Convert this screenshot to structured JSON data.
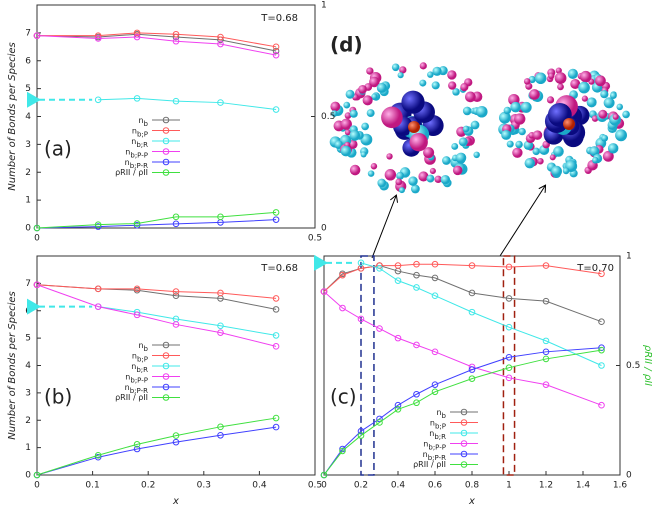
{
  "chart_data": [
    {
      "type": "line",
      "title": "(a)",
      "annotation": "T=0.68",
      "ylabel": "Number of Bonds per Species",
      "x": [
        0,
        0.11,
        0.18,
        0.25,
        0.33,
        0.43
      ],
      "xlim": [
        0,
        0.5
      ],
      "xticks": [
        0,
        0.5
      ],
      "ylim": [
        0,
        8
      ],
      "yticks": [
        0,
        1,
        2,
        3,
        4,
        5,
        6,
        7
      ],
      "y2lim": [
        0,
        1
      ],
      "y2ticks": [
        0,
        0.5,
        1
      ],
      "series": [
        {
          "name": "nb",
          "color": "#707070",
          "values": [
            6.9,
            6.85,
            6.95,
            6.85,
            6.75,
            6.35
          ]
        },
        {
          "name": "nb;P",
          "color": "#ff5a5a",
          "values": [
            6.9,
            6.9,
            7.0,
            6.95,
            6.85,
            6.5
          ]
        },
        {
          "name": "nb;R",
          "color": "#40e8e8",
          "values": [
            null,
            4.6,
            4.65,
            4.55,
            4.5,
            4.25
          ]
        },
        {
          "name": "nb;P-P",
          "color": "#f040f0",
          "values": [
            6.9,
            6.8,
            6.85,
            6.7,
            6.6,
            6.2
          ]
        },
        {
          "name": "nb;P-R",
          "color": "#4040ff",
          "values": [
            0,
            0.05,
            0.1,
            0.15,
            0.2,
            0.3
          ]
        },
        {
          "name": "ρRII / ρII",
          "color": "#40e040",
          "axis": "y2",
          "values": [
            0,
            0.015,
            0.02,
            0.05,
            0.05,
            0.07
          ]
        }
      ]
    },
    {
      "type": "line",
      "title": "(b)",
      "annotation": "T=0.68",
      "ylabel": "Number of Bonds per Species",
      "xlabel": "x",
      "x": [
        0,
        0.11,
        0.18,
        0.25,
        0.33,
        0.43
      ],
      "xlim": [
        0,
        0.5
      ],
      "xticks": [
        0,
        0.1,
        0.2,
        0.3,
        0.4,
        0.5
      ],
      "ylim": [
        0,
        8
      ],
      "yticks": [
        0,
        1,
        2,
        3,
        4,
        5,
        6,
        7
      ],
      "y2lim": [
        0,
        1
      ],
      "series": [
        {
          "name": "nb",
          "color": "#707070",
          "values": [
            6.95,
            6.8,
            6.75,
            6.55,
            6.45,
            6.05
          ]
        },
        {
          "name": "nb;P",
          "color": "#ff5a5a",
          "values": [
            6.95,
            6.8,
            6.8,
            6.7,
            6.65,
            6.45
          ]
        },
        {
          "name": "nb;R",
          "color": "#40e8e8",
          "values": [
            null,
            6.15,
            5.95,
            5.7,
            5.45,
            5.1
          ]
        },
        {
          "name": "nb;P-P",
          "color": "#f040f0",
          "values": [
            6.95,
            6.15,
            5.85,
            5.5,
            5.2,
            4.7
          ]
        },
        {
          "name": "nb;P-R",
          "color": "#4040ff",
          "values": [
            0,
            0.65,
            0.95,
            1.2,
            1.45,
            1.75
          ]
        },
        {
          "name": "ρRII / ρII",
          "color": "#40e040",
          "axis": "y2",
          "values": [
            0,
            0.09,
            0.14,
            0.18,
            0.22,
            0.26
          ]
        }
      ]
    },
    {
      "type": "line",
      "title": "(c)",
      "annotation": "T=0.70",
      "xlabel": "x",
      "y2label": "ρRII / ρII",
      "x": [
        0,
        0.1,
        0.2,
        0.3,
        0.4,
        0.5,
        0.6,
        0.8,
        1.0,
        1.2,
        1.5
      ],
      "xlim": [
        0,
        1.6
      ],
      "xticks": [
        0,
        0.2,
        0.4,
        0.6,
        0.8,
        1,
        1.2,
        1.4,
        1.6
      ],
      "ylim": [
        0,
        8
      ],
      "y2lim": [
        0,
        1
      ],
      "y2ticks": [
        0,
        0.5,
        1
      ],
      "series": [
        {
          "name": "nb",
          "color": "#707070",
          "values": [
            6.7,
            7.35,
            7.55,
            7.65,
            7.45,
            7.3,
            7.2,
            6.65,
            6.45,
            6.35,
            5.6
          ]
        },
        {
          "name": "nb;P",
          "color": "#ff5a5a",
          "values": [
            6.7,
            7.3,
            7.55,
            7.65,
            7.65,
            7.7,
            7.7,
            7.65,
            7.6,
            7.65,
            7.35
          ]
        },
        {
          "name": "nb;R",
          "color": "#40e8e8",
          "values": [
            null,
            null,
            7.75,
            7.55,
            7.1,
            6.85,
            6.55,
            5.95,
            5.4,
            4.9,
            4.0
          ]
        },
        {
          "name": "nb;P-P",
          "color": "#f040f0",
          "values": [
            6.7,
            6.1,
            5.7,
            5.35,
            5.0,
            4.75,
            4.5,
            3.95,
            3.55,
            3.3,
            2.55
          ]
        },
        {
          "name": "nb;P-R",
          "color": "#4040ff",
          "values": [
            0,
            0.95,
            1.6,
            2.05,
            2.55,
            2.95,
            3.3,
            3.85,
            4.3,
            4.5,
            4.65
          ]
        },
        {
          "name": "ρRII / ρII",
          "color": "#40e040",
          "axis": "y2",
          "values": [
            0,
            0.11,
            0.18,
            0.24,
            0.3,
            0.33,
            0.38,
            0.44,
            0.49,
            0.53,
            0.57
          ]
        }
      ]
    }
  ],
  "panel_d": {
    "label": "(d)"
  }
}
